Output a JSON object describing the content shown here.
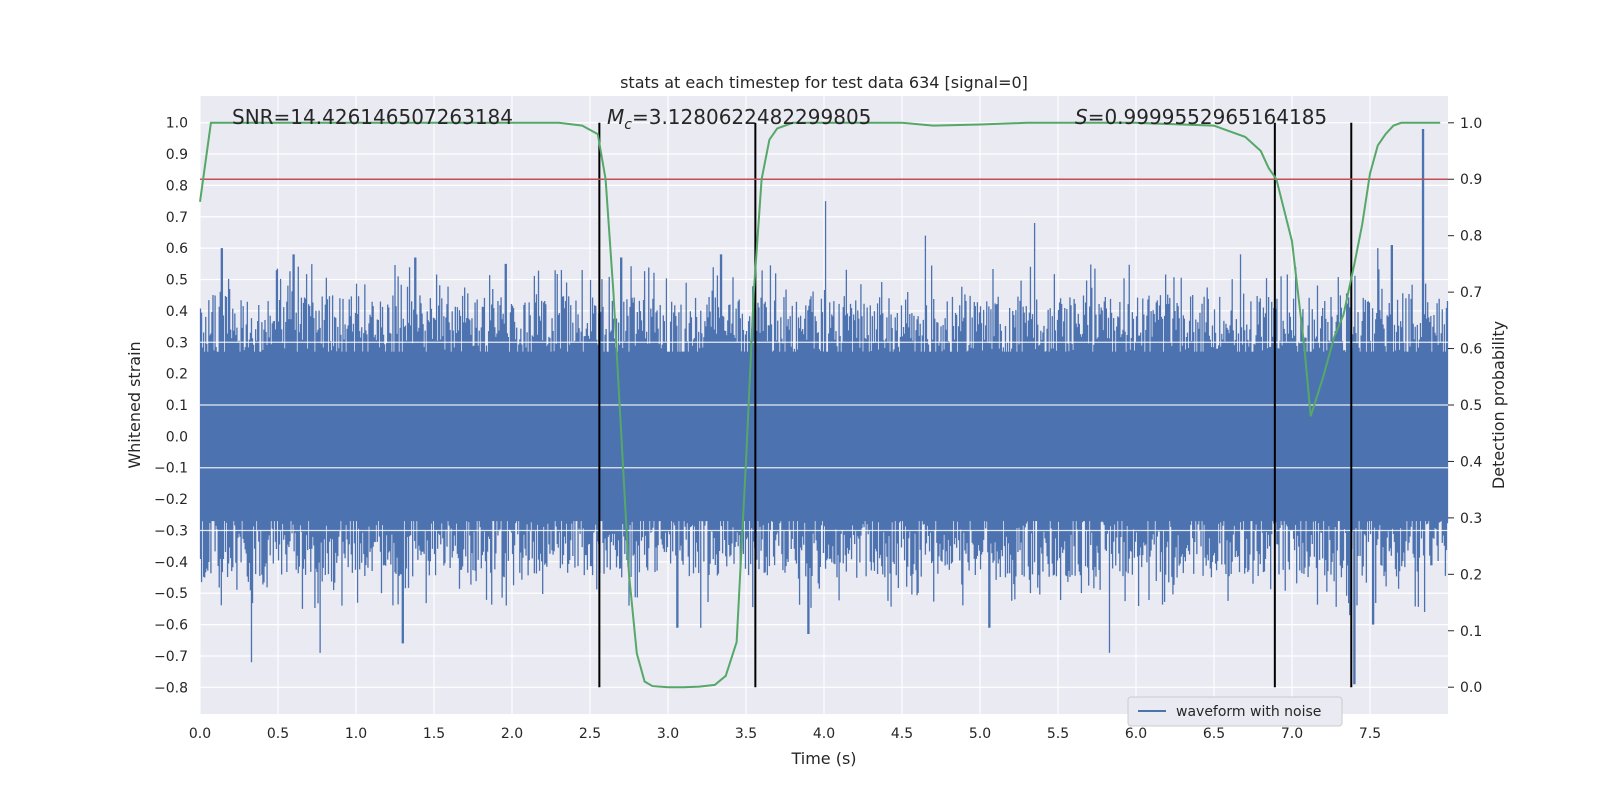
{
  "chart_data": {
    "type": "line",
    "title": "stats at each timestep for test data 634 [signal=0]",
    "xlabel": "Time (s)",
    "ylabel": "Whitened strain",
    "y2label": "Detection probability",
    "xlim": [
      0.0,
      8.0
    ],
    "ylim": [
      -0.885,
      1.085
    ],
    "y2lim": [
      -0.0475,
      1.0475
    ],
    "x_ticks": [
      "0.0",
      "0.5",
      "1.0",
      "1.5",
      "2.0",
      "2.5",
      "3.0",
      "3.5",
      "4.0",
      "4.5",
      "5.0",
      "5.5",
      "6.0",
      "6.5",
      "7.0",
      "7.5"
    ],
    "y_ticks": [
      "1.0",
      "0.9",
      "0.8",
      "0.7",
      "0.6",
      "0.5",
      "0.4",
      "0.3",
      "0.2",
      "0.1",
      "0.0",
      "−0.1",
      "−0.2",
      "−0.3",
      "−0.4",
      "−0.5",
      "−0.6",
      "−0.7",
      "−0.8"
    ],
    "y2_ticks": [
      "1.0",
      "0.9",
      "0.8",
      "0.7",
      "0.6",
      "0.5",
      "0.4",
      "0.3",
      "0.2",
      "0.1",
      "0.0"
    ],
    "grid": true,
    "legend_position": "lower-right",
    "annotations": {
      "snr": "SNR=14.426146507263184",
      "mc_symbol": "M",
      "mc_sub": "c",
      "mc_value": "=3.1280622482299805",
      "s_symbol": "S",
      "s_value": "=0.9999552965164185"
    },
    "series": [
      {
        "name": "waveform with noise",
        "axis": "left",
        "kind": "noise-envelope",
        "envelope_typical_max": 0.45,
        "envelope_typical_min": -0.45,
        "peaks": [
          {
            "x": 0.14,
            "y": 0.6
          },
          {
            "x": 0.33,
            "y": -0.72
          },
          {
            "x": 0.6,
            "y": 0.58
          },
          {
            "x": 0.77,
            "y": -0.69
          },
          {
            "x": 1.3,
            "y": -0.66
          },
          {
            "x": 1.38,
            "y": 0.57
          },
          {
            "x": 1.96,
            "y": 0.55
          },
          {
            "x": 2.7,
            "y": 0.57
          },
          {
            "x": 3.06,
            "y": -0.61
          },
          {
            "x": 3.21,
            "y": -0.61
          },
          {
            "x": 3.34,
            "y": 0.58
          },
          {
            "x": 3.9,
            "y": -0.63
          },
          {
            "x": 4.01,
            "y": 0.75
          },
          {
            "x": 4.65,
            "y": 0.64
          },
          {
            "x": 5.06,
            "y": -0.61
          },
          {
            "x": 5.35,
            "y": 0.68
          },
          {
            "x": 5.83,
            "y": -0.69
          },
          {
            "x": 6.67,
            "y": 0.58
          },
          {
            "x": 7.37,
            "y": -0.57
          },
          {
            "x": 7.4,
            "y": -0.79
          },
          {
            "x": 7.52,
            "y": -0.6
          },
          {
            "x": 7.55,
            "y": 0.6
          },
          {
            "x": 7.64,
            "y": 0.61
          },
          {
            "x": 7.84,
            "y": 0.98
          },
          {
            "x": 7.85,
            "y": -0.56
          }
        ],
        "color": "#4c72b0"
      },
      {
        "name": "",
        "axis": "right",
        "kind": "probability",
        "color": "#55a868",
        "x": [
          0.0,
          0.07,
          0.15,
          0.5,
          1.0,
          1.5,
          2.0,
          2.3,
          2.45,
          2.55,
          2.6,
          2.65,
          2.7,
          2.75,
          2.8,
          2.85,
          2.9,
          3.0,
          3.1,
          3.2,
          3.3,
          3.37,
          3.44,
          3.5,
          3.55,
          3.6,
          3.65,
          3.7,
          3.8,
          4.0,
          4.5,
          4.7,
          5.0,
          5.3,
          5.6,
          6.0,
          6.5,
          6.6,
          6.7,
          6.8,
          6.85,
          6.9,
          7.0,
          7.08,
          7.12,
          7.2,
          7.27,
          7.33,
          7.4,
          7.45,
          7.5,
          7.55,
          7.6,
          7.65,
          7.7,
          7.8,
          7.95
        ],
        "y": [
          0.86,
          1.0,
          1.0,
          1.0,
          1.0,
          1.0,
          1.0,
          1.0,
          0.995,
          0.98,
          0.9,
          0.7,
          0.45,
          0.2,
          0.06,
          0.01,
          0.002,
          0.0,
          0.0,
          0.001,
          0.004,
          0.02,
          0.08,
          0.4,
          0.7,
          0.9,
          0.97,
          0.99,
          1.0,
          1.0,
          1.0,
          0.995,
          0.997,
          1.0,
          1.0,
          1.0,
          0.995,
          0.985,
          0.975,
          0.95,
          0.92,
          0.9,
          0.79,
          0.6,
          0.48,
          0.55,
          0.62,
          0.66,
          0.75,
          0.82,
          0.91,
          0.96,
          0.98,
          0.995,
          1.0,
          1.0,
          1.0
        ]
      },
      {
        "name": "",
        "axis": "right",
        "kind": "threshold",
        "color": "#c44e52",
        "y": 0.9
      }
    ],
    "vertical_lines_x": [
      2.56,
      3.56,
      6.89,
      7.38
    ],
    "vertical_lines_color": "#000000",
    "colors": {
      "plot_bg": "#eaeaf2",
      "grid": "#ffffff",
      "legend_bg": "#eaeaf2",
      "legend_border": "#cccccc"
    }
  }
}
